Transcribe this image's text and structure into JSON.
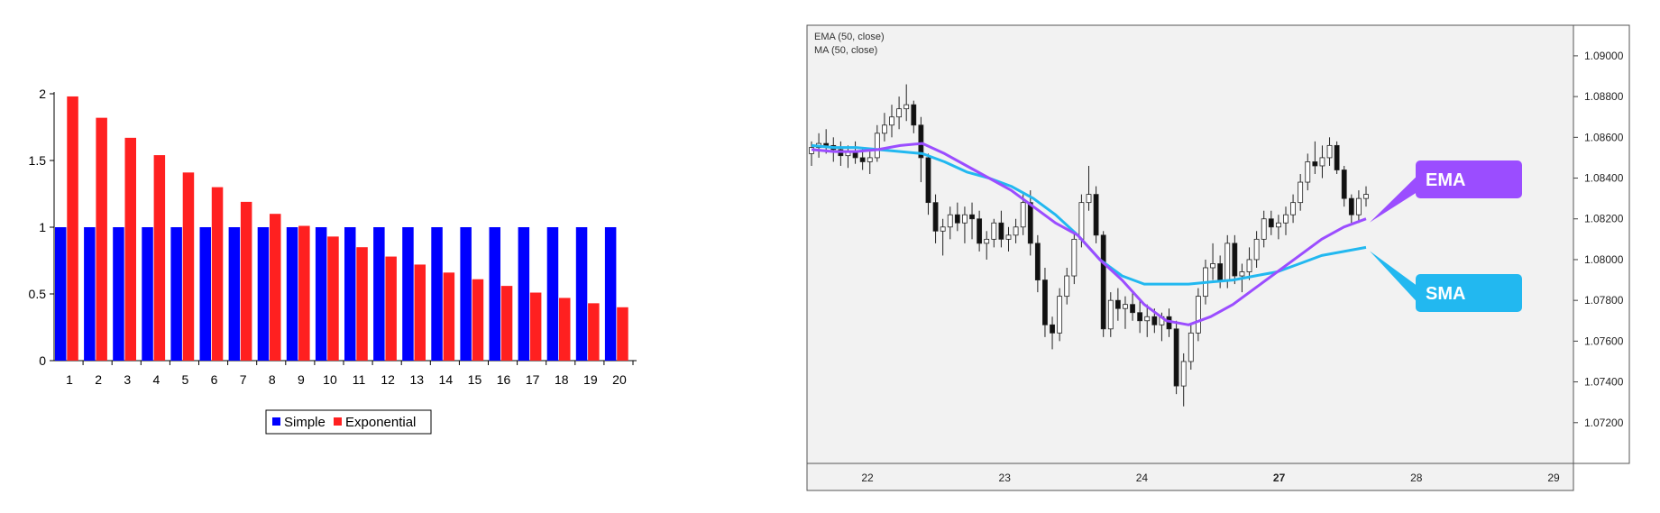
{
  "chart_data": [
    {
      "type": "bar",
      "title": "",
      "xlabel": "",
      "ylabel": "",
      "categories": [
        "1",
        "2",
        "3",
        "4",
        "5",
        "6",
        "7",
        "8",
        "9",
        "10",
        "11",
        "12",
        "13",
        "14",
        "15",
        "16",
        "17",
        "18",
        "19",
        "20"
      ],
      "series": [
        {
          "name": "Simple",
          "color": "#0000ff",
          "values": [
            1,
            1,
            1,
            1,
            1,
            1,
            1,
            1,
            1,
            1,
            1,
            1,
            1,
            1,
            1,
            1,
            1,
            1,
            1,
            1
          ]
        },
        {
          "name": "Exponential",
          "color": "#ff2020",
          "values": [
            1.98,
            1.82,
            1.67,
            1.54,
            1.41,
            1.3,
            1.19,
            1.1,
            1.01,
            0.93,
            0.85,
            0.78,
            0.72,
            0.66,
            0.61,
            0.56,
            0.51,
            0.47,
            0.43,
            0.4
          ]
        }
      ],
      "y_ticks": [
        "0",
        "0.5",
        "1",
        "1.5",
        "2"
      ],
      "ylim": [
        0,
        2
      ],
      "grid": false,
      "legend_position": "bottom-center"
    },
    {
      "type": "line",
      "chart_style": "candlestick",
      "indicator_labels": [
        "EMA (50, close)",
        "MA (50, close)"
      ],
      "x_ticks": [
        {
          "label": "22",
          "bold": false
        },
        {
          "label": "23",
          "bold": false
        },
        {
          "label": "24",
          "bold": false
        },
        {
          "label": "27",
          "bold": true
        },
        {
          "label": "28",
          "bold": false
        },
        {
          "label": "29",
          "bold": false
        }
      ],
      "y_ticks": [
        "1.07200",
        "1.07400",
        "1.07600",
        "1.07800",
        "1.08000",
        "1.08200",
        "1.08400",
        "1.08600",
        "1.08800",
        "1.09000"
      ],
      "ylim": [
        1.07,
        1.0915
      ],
      "grid": false,
      "background": "#f2f2f2",
      "candles": [
        [
          1.0852,
          1.0858,
          1.0846,
          1.0855
        ],
        [
          1.0855,
          1.0862,
          1.085,
          1.0857
        ],
        [
          1.0857,
          1.0864,
          1.0852,
          1.0856
        ],
        [
          1.0856,
          1.086,
          1.0848,
          1.0854
        ],
        [
          1.0854,
          1.0858,
          1.0846,
          1.0851
        ],
        [
          1.0851,
          1.0856,
          1.0845,
          1.0853
        ],
        [
          1.0853,
          1.0858,
          1.0847,
          1.085
        ],
        [
          1.085,
          1.0855,
          1.0844,
          1.0848
        ],
        [
          1.0848,
          1.0853,
          1.0842,
          1.085
        ],
        [
          1.085,
          1.0866,
          1.0848,
          1.0862
        ],
        [
          1.0862,
          1.0872,
          1.0858,
          1.0866
        ],
        [
          1.0866,
          1.0876,
          1.086,
          1.087
        ],
        [
          1.087,
          1.088,
          1.0864,
          1.0874
        ],
        [
          1.0874,
          1.0886,
          1.0868,
          1.0876
        ],
        [
          1.0876,
          1.0878,
          1.0862,
          1.0866
        ],
        [
          1.0866,
          1.087,
          1.0838,
          1.085
        ],
        [
          1.085,
          1.0852,
          1.0822,
          1.0828
        ],
        [
          1.0828,
          1.0832,
          1.0808,
          1.0814
        ],
        [
          1.0814,
          1.082,
          1.0802,
          1.0816
        ],
        [
          1.0816,
          1.0826,
          1.081,
          1.0822
        ],
        [
          1.0822,
          1.0828,
          1.0814,
          1.0818
        ],
        [
          1.0818,
          1.0826,
          1.0808,
          1.0822
        ],
        [
          1.0822,
          1.0828,
          1.081,
          1.082
        ],
        [
          1.082,
          1.0824,
          1.0804,
          1.0808
        ],
        [
          1.0808,
          1.0814,
          1.08,
          1.081
        ],
        [
          1.081,
          1.082,
          1.0806,
          1.0818
        ],
        [
          1.0818,
          1.0824,
          1.0806,
          1.081
        ],
        [
          1.081,
          1.0816,
          1.0804,
          1.0812
        ],
        [
          1.0812,
          1.082,
          1.0808,
          1.0816
        ],
        [
          1.0816,
          1.0832,
          1.0812,
          1.0828
        ],
        [
          1.0828,
          1.0834,
          1.0802,
          1.0808
        ],
        [
          1.0808,
          1.0812,
          1.0784,
          1.079
        ],
        [
          1.079,
          1.0796,
          1.0762,
          1.0768
        ],
        [
          1.0768,
          1.0772,
          1.0756,
          1.0764
        ],
        [
          1.0764,
          1.0786,
          1.076,
          1.0782
        ],
        [
          1.0782,
          1.0796,
          1.0778,
          1.0792
        ],
        [
          1.0792,
          1.0814,
          1.0788,
          1.081
        ],
        [
          1.081,
          1.0832,
          1.0806,
          1.0828
        ],
        [
          1.0828,
          1.0846,
          1.0824,
          1.0832
        ],
        [
          1.0832,
          1.0836,
          1.0808,
          1.0812
        ],
        [
          1.0812,
          1.0814,
          1.0762,
          1.0766
        ],
        [
          1.0766,
          1.0784,
          1.0762,
          1.078
        ],
        [
          1.078,
          1.0786,
          1.077,
          1.0776
        ],
        [
          1.0776,
          1.0782,
          1.0766,
          1.0778
        ],
        [
          1.0778,
          1.0784,
          1.077,
          1.0774
        ],
        [
          1.0774,
          1.078,
          1.0764,
          1.077
        ],
        [
          1.077,
          1.0778,
          1.0762,
          1.0772
        ],
        [
          1.0772,
          1.0776,
          1.0764,
          1.0768
        ],
        [
          1.0768,
          1.0774,
          1.076,
          1.0772
        ],
        [
          1.0772,
          1.0776,
          1.0762,
          1.0766
        ],
        [
          1.0766,
          1.077,
          1.0734,
          1.0738
        ],
        [
          1.0738,
          1.0754,
          1.0728,
          1.075
        ],
        [
          1.075,
          1.0768,
          1.0746,
          1.0764
        ],
        [
          1.0764,
          1.0786,
          1.076,
          1.0782
        ],
        [
          1.0782,
          1.08,
          1.0778,
          1.0796
        ],
        [
          1.0796,
          1.0808,
          1.079,
          1.0798
        ],
        [
          1.0798,
          1.0802,
          1.0786,
          1.079
        ],
        [
          1.079,
          1.0812,
          1.0786,
          1.0808
        ],
        [
          1.0808,
          1.0812,
          1.0788,
          1.0792
        ],
        [
          1.0792,
          1.0798,
          1.0784,
          1.0794
        ],
        [
          1.0794,
          1.0806,
          1.079,
          1.08
        ],
        [
          1.08,
          1.0814,
          1.0796,
          1.081
        ],
        [
          1.081,
          1.0824,
          1.0806,
          1.082
        ],
        [
          1.082,
          1.0824,
          1.0812,
          1.0816
        ],
        [
          1.0816,
          1.0822,
          1.081,
          1.0818
        ],
        [
          1.0818,
          1.0826,
          1.0812,
          1.0822
        ],
        [
          1.0822,
          1.0832,
          1.0818,
          1.0828
        ],
        [
          1.0828,
          1.0842,
          1.0824,
          1.0838
        ],
        [
          1.0838,
          1.0852,
          1.0834,
          1.0848
        ],
        [
          1.0848,
          1.0858,
          1.0842,
          1.0846
        ],
        [
          1.0846,
          1.0856,
          1.084,
          1.085
        ],
        [
          1.085,
          1.086,
          1.0846,
          1.0856
        ],
        [
          1.0856,
          1.0858,
          1.0842,
          1.0844
        ],
        [
          1.0844,
          1.0846,
          1.0826,
          1.083
        ],
        [
          1.083,
          1.0832,
          1.0818,
          1.0822
        ],
        [
          1.0822,
          1.0834,
          1.0818,
          1.083
        ],
        [
          1.083,
          1.0836,
          1.0826,
          1.0832
        ]
      ],
      "ema": [
        1.0854,
        1.0853,
        1.0853,
        1.0854,
        1.0856,
        1.0857,
        1.0852,
        1.0846,
        1.084,
        1.0834,
        1.0826,
        1.0818,
        1.0812,
        1.08,
        1.079,
        1.0778,
        1.077,
        1.0768,
        1.0772,
        1.0778,
        1.0786,
        1.0794,
        1.0802,
        1.081,
        1.0816,
        1.082
      ],
      "sma": [
        1.0856,
        1.0855,
        1.0855,
        1.0854,
        1.0853,
        1.0852,
        1.0848,
        1.0843,
        1.084,
        1.0836,
        1.083,
        1.0822,
        1.0812,
        1.08,
        1.0792,
        1.0788,
        1.0788,
        1.0788,
        1.0789,
        1.079,
        1.0792,
        1.0794,
        1.0798,
        1.0802,
        1.0804,
        1.0806
      ],
      "callouts": [
        {
          "label": "EMA",
          "color": "#9b4dff"
        },
        {
          "label": "SMA",
          "color": "#22b8f0"
        }
      ]
    }
  ]
}
